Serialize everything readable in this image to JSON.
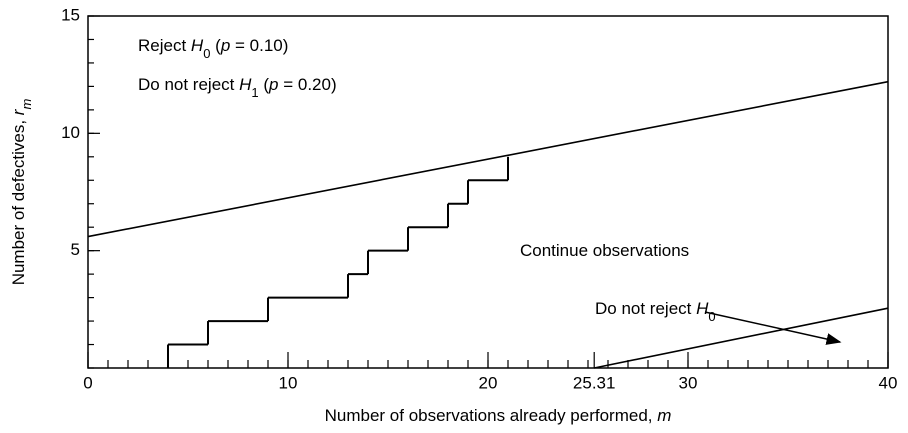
{
  "chart_data": {
    "type": "line",
    "xlabel": [
      {
        "t": "Number of observations already performed, "
      },
      {
        "t": "m",
        "style": "italic"
      }
    ],
    "ylabel": [
      {
        "t": "Number of defectives, "
      },
      {
        "t": "r",
        "style": "italic"
      },
      {
        "t": "m",
        "style": "sub-italic"
      }
    ],
    "annotations": [
      [
        {
          "t": "Reject "
        },
        {
          "t": "H",
          "style": "italic"
        },
        {
          "t": "0",
          "style": "sub"
        },
        {
          "t": " ("
        },
        {
          "t": "p",
          "style": "italic"
        },
        {
          "t": " = 0.10)"
        }
      ],
      [
        {
          "t": "Do not reject "
        },
        {
          "t": "H",
          "style": "italic"
        },
        {
          "t": "1",
          "style": "sub"
        },
        {
          "t": " ("
        },
        {
          "t": "p",
          "style": "italic"
        },
        {
          "t": " = 0.20)"
        }
      ],
      [
        {
          "t": "Continue observations"
        }
      ],
      [
        {
          "t": "Do not reject "
        },
        {
          "t": "H",
          "style": "italic"
        },
        {
          "t": "0",
          "style": "sub"
        }
      ]
    ],
    "xlim": [
      0,
      40
    ],
    "ylim": [
      0,
      15
    ],
    "xticks": [
      0,
      10,
      20,
      25.31,
      30,
      40
    ],
    "yticks": [
      5,
      10,
      15
    ],
    "xminor_step": 1,
    "yminor_step": 1,
    "series": [
      {
        "color": "#000000",
        "x": [
          0,
          40
        ],
        "values": [
          5.6,
          12.2
        ]
      },
      {
        "color": "#000000",
        "x": [
          25.31,
          40
        ],
        "values": [
          0,
          2.55
        ]
      },
      {
        "color": "#000000",
        "step": true,
        "x": [
          4,
          4,
          6,
          9,
          13,
          14,
          16,
          18,
          19,
          21
        ],
        "values": [
          0,
          1,
          2,
          3,
          4,
          5,
          6,
          7,
          8,
          9
        ]
      }
    ]
  }
}
